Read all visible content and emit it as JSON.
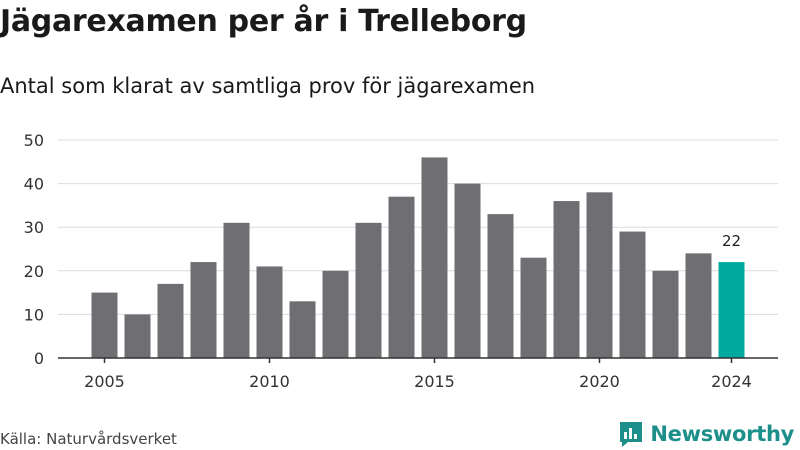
{
  "title": "Jägarexamen per år i Trelleborg",
  "subtitle": "Antal som klarat av samtliga prov för jägarexamen",
  "source": "Källa: Naturvårdsverket",
  "brand": {
    "name": "Newsworthy",
    "color": "#1d8f8a",
    "icon": "bar-chart-logo-icon"
  },
  "chart_data": {
    "type": "bar",
    "x": [
      2005,
      2006,
      2007,
      2008,
      2009,
      2010,
      2011,
      2012,
      2013,
      2014,
      2015,
      2016,
      2017,
      2018,
      2019,
      2020,
      2021,
      2022,
      2023,
      2024
    ],
    "values": [
      15,
      10,
      17,
      22,
      31,
      21,
      13,
      20,
      31,
      37,
      46,
      40,
      33,
      23,
      36,
      38,
      29,
      20,
      24,
      22
    ],
    "x_ticks": [
      2005,
      2010,
      2015,
      2020,
      2024
    ],
    "y_ticks": [
      0,
      10,
      20,
      30,
      40,
      50
    ],
    "ylim": [
      0,
      50
    ],
    "grid": true,
    "bar_color": "#6f6e73",
    "highlight_color": "#00a99d",
    "highlight_index": 19,
    "highlight_label": "22"
  }
}
